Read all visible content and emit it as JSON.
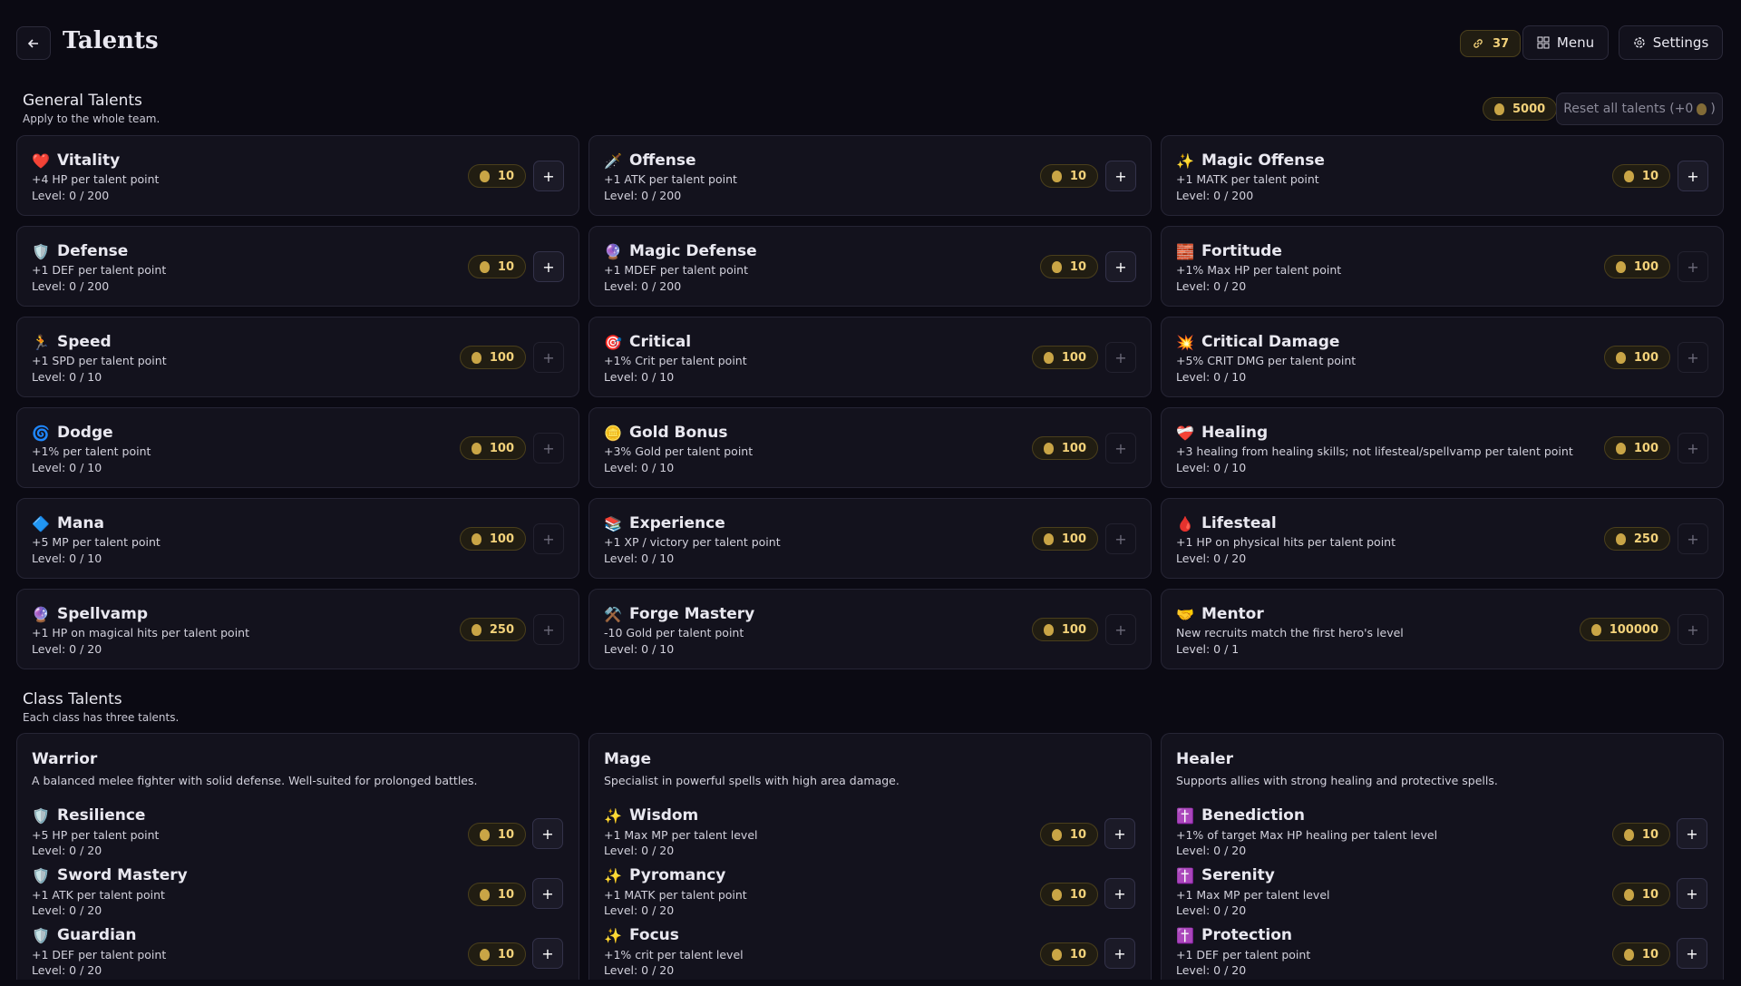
{
  "header": {
    "title": "Talents",
    "links": "37",
    "menu": "Menu",
    "settings": "Settings"
  },
  "general": {
    "title": "General Talents",
    "subtitle": "Apply to the whole team.",
    "gold": 5000,
    "reset": "Reset all talents (+0",
    "reset_end": ")",
    "talents": [
      {
        "icon": "❤️",
        "name": "Vitality",
        "description": "+4 HP per talent point",
        "level": "Level: 0 / 200",
        "cost": 10,
        "can_buy": true
      },
      {
        "icon": "🗡️",
        "name": "Offense",
        "description": "+1 ATK per talent point",
        "level": "Level: 0 / 200",
        "cost": 10,
        "can_buy": true
      },
      {
        "icon": "✨",
        "name": "Magic Offense",
        "description": "+1 MATK per talent point",
        "level": "Level: 0 / 200",
        "cost": 10,
        "can_buy": true
      },
      {
        "icon": "🛡️",
        "name": "Defense",
        "description": "+1 DEF per talent point",
        "level": "Level: 0 / 200",
        "cost": 10,
        "can_buy": true
      },
      {
        "icon": "🔮",
        "name": "Magic Defense",
        "description": "+1 MDEF per talent point",
        "level": "Level: 0 / 200",
        "cost": 10,
        "can_buy": true
      },
      {
        "icon": "🧱",
        "name": "Fortitude",
        "description": "+1% Max HP per talent point",
        "level": "Level: 0 / 20",
        "cost": 100,
        "can_buy": false
      },
      {
        "icon": "🏃",
        "name": "Speed",
        "description": "+1 SPD per talent point",
        "level": "Level: 0 / 10",
        "cost": 100,
        "can_buy": false
      },
      {
        "icon": "🎯",
        "name": "Critical",
        "description": "+1% Crit per talent point",
        "level": "Level: 0 / 10",
        "cost": 100,
        "can_buy": false
      },
      {
        "icon": "💥",
        "name": "Critical Damage",
        "description": "+5% CRIT DMG per talent point",
        "level": "Level: 0 / 10",
        "cost": 100,
        "can_buy": false
      },
      {
        "icon": "🌀",
        "name": "Dodge",
        "description": "+1% per talent point",
        "level": "Level: 0 / 10",
        "cost": 100,
        "can_buy": false
      },
      {
        "icon": "🪙",
        "name": "Gold Bonus",
        "description": "+3% Gold per talent point",
        "level": "Level: 0 / 10",
        "cost": 100,
        "can_buy": false
      },
      {
        "icon": "❤️‍🩹",
        "name": "Healing",
        "description": "+3 healing from healing skills; not lifesteal/spellvamp per talent point",
        "level": "Level: 0 / 10",
        "cost": 100,
        "can_buy": false
      },
      {
        "icon": "🔷",
        "name": "Mana",
        "description": "+5 MP per talent point",
        "level": "Level: 0 / 10",
        "cost": 100,
        "can_buy": false
      },
      {
        "icon": "📚",
        "name": "Experience",
        "description": "+1 XP / victory per talent point",
        "level": "Level: 0 / 10",
        "cost": 100,
        "can_buy": false
      },
      {
        "icon": "🩸",
        "name": "Lifesteal",
        "description": "+1 HP on physical hits per talent point",
        "level": "Level: 0 / 20",
        "cost": 250,
        "can_buy": false
      },
      {
        "icon": "🔮",
        "name": "Spellvamp",
        "description": "+1 HP on magical hits per talent point",
        "level": "Level: 0 / 20",
        "cost": 250,
        "can_buy": false
      },
      {
        "icon": "⚒️",
        "name": "Forge Mastery",
        "description": "-10 Gold per talent point",
        "level": "Level: 0 / 10",
        "cost": 100,
        "can_buy": false
      },
      {
        "icon": "🤝",
        "name": "Mentor",
        "description": "New recruits match the first hero's level",
        "level": "Level: 0 / 1",
        "cost": 100000,
        "can_buy": false
      }
    ]
  },
  "classes": {
    "title": "Class Talents",
    "subtitle": "Each class has three talents.",
    "items": [
      {
        "name": "Warrior",
        "description": "A balanced melee fighter with solid defense. Well-suited for prolonged battles.",
        "talents": [
          {
            "icon": "🛡️",
            "name": "Resilience",
            "description": "+5 HP per talent point",
            "level": "Level: 0 / 20",
            "cost": 10
          },
          {
            "icon": "🛡️",
            "name": "Sword Mastery",
            "description": "+1 ATK per talent point",
            "level": "Level: 0 / 20",
            "cost": 10
          },
          {
            "icon": "🛡️",
            "name": "Guardian",
            "description": "+1 DEF per talent point",
            "level": "Level: 0 / 20",
            "cost": 10
          }
        ]
      },
      {
        "name": "Mage",
        "description": "Specialist in powerful spells with high area damage.",
        "talents": [
          {
            "icon": "✨",
            "name": "Wisdom",
            "description": "+1 Max MP per talent level",
            "level": "Level: 0 / 20",
            "cost": 10
          },
          {
            "icon": "✨",
            "name": "Pyromancy",
            "description": "+1 MATK per talent point",
            "level": "Level: 0 / 20",
            "cost": 10
          },
          {
            "icon": "✨",
            "name": "Focus",
            "description": "+1% crit per talent level",
            "level": "Level: 0 / 20",
            "cost": 10
          }
        ]
      },
      {
        "name": "Healer",
        "description": "Supports allies with strong healing and protective spells.",
        "talents": [
          {
            "icon": "✝️",
            "name": "Benediction",
            "description": "+1% of target Max HP healing per talent level",
            "level": "Level: 0 / 20",
            "cost": 10
          },
          {
            "icon": "✝️",
            "name": "Serenity",
            "description": "+1 Max MP per talent level",
            "level": "Level: 0 / 20",
            "cost": 10
          },
          {
            "icon": "✝️",
            "name": "Protection",
            "description": "+1 DEF per talent point",
            "level": "Level: 0 / 20",
            "cost": 10
          }
        ]
      }
    ]
  }
}
